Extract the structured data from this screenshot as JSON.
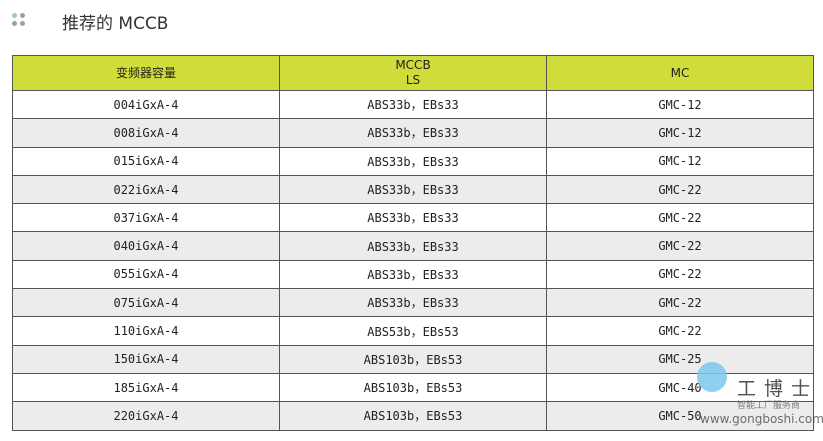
{
  "header": {
    "title": "推荐的 MCCB",
    "icon": "four-dots-icon",
    "dot_colors": [
      "#8fd0b8",
      "#9aa0a6"
    ]
  },
  "table": {
    "header_color": "#cfdc3a",
    "columns": [
      "变频器容量",
      "MCCB\nLS",
      "MC"
    ],
    "rows": [
      [
        "004iGxA-4",
        "ABS33b，EBs33",
        "GMC-12"
      ],
      [
        "008iGxA-4",
        "ABS33b，EBs33",
        "GMC-12"
      ],
      [
        "015iGxA-4",
        "ABS33b，EBs33",
        "GMC-12"
      ],
      [
        "022iGxA-4",
        "ABS33b，EBs33",
        "GMC-22"
      ],
      [
        "037iGxA-4",
        "ABS33b，EBs33",
        "GMC-22"
      ],
      [
        "040iGxA-4",
        "ABS33b，EBs33",
        "GMC-22"
      ],
      [
        "055iGxA-4",
        "ABS33b，EBs33",
        "GMC-22"
      ],
      [
        "075iGxA-4",
        "ABS33b，EBs33",
        "GMC-22"
      ],
      [
        "110iGxA-4",
        "ABS53b，EBs53",
        "GMC-22"
      ],
      [
        "150iGxA-4",
        "ABS103b，EBs53",
        "GMC-25"
      ],
      [
        "185iGxA-4",
        "ABS103b，EBs53",
        "GMC-40"
      ],
      [
        "220iGxA-4",
        "ABS103b，EBs53",
        "GMC-50"
      ]
    ]
  },
  "watermark": {
    "brand": "工博士",
    "tagline": "智能工厂服务商",
    "url": "www.gongboshi.com"
  }
}
